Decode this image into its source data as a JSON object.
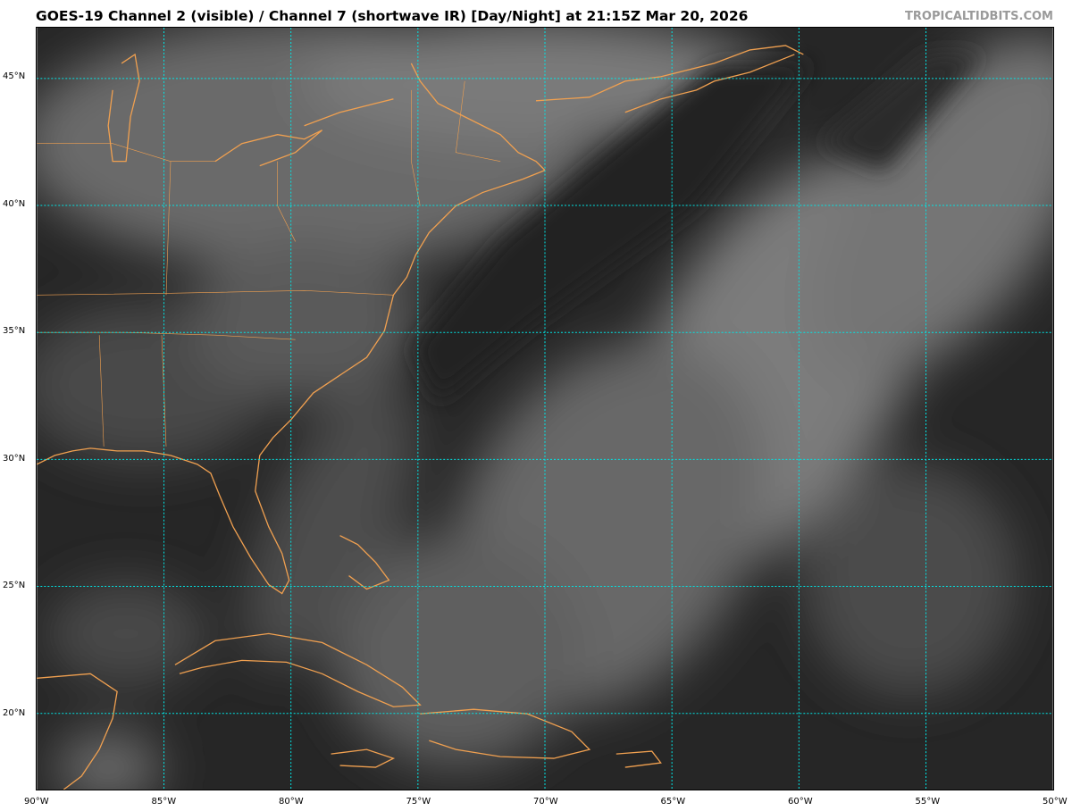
{
  "header": {
    "title": "GOES-19 Channel 2 (visible) / Channel 7 (shortwave IR) [Day/Night] at 21:15Z Mar 20, 2026",
    "watermark": "TROPICALTIDBITS.COM"
  },
  "map": {
    "lon_range": [
      -90,
      -50
    ],
    "lat_range": [
      17,
      47
    ],
    "lon_ticks": [
      {
        "value": -90,
        "label": "90°W"
      },
      {
        "value": -85,
        "label": "85°W"
      },
      {
        "value": -80,
        "label": "80°W"
      },
      {
        "value": -75,
        "label": "75°W"
      },
      {
        "value": -70,
        "label": "70°W"
      },
      {
        "value": -65,
        "label": "65°W"
      },
      {
        "value": -60,
        "label": "60°W"
      },
      {
        "value": -55,
        "label": "55°W"
      },
      {
        "value": -50,
        "label": "50°W"
      }
    ],
    "lat_ticks": [
      {
        "value": 20,
        "label": "20°N"
      },
      {
        "value": 25,
        "label": "25°N"
      },
      {
        "value": 30,
        "label": "30°N"
      },
      {
        "value": 35,
        "label": "35°N"
      },
      {
        "value": 40,
        "label": "40°N"
      },
      {
        "value": 45,
        "label": "45°N"
      }
    ],
    "colors": {
      "gridlines": "#00e5e5",
      "coastlines": "#f0a050",
      "background": "#262626"
    }
  }
}
